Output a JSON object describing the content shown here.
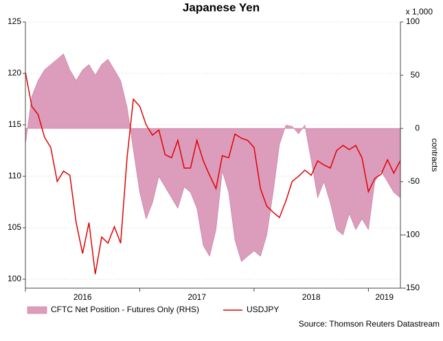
{
  "chart_data": {
    "type": "area-line",
    "title": "Japanese Yen",
    "y2_unit": "x 1,000",
    "y2label": "contracts",
    "source": "Source: Thomson Reuters Datastream",
    "x": [
      2016,
      2016.056,
      2016.111,
      2016.167,
      2016.222,
      2016.278,
      2016.333,
      2016.389,
      2016.444,
      2016.5,
      2016.556,
      2016.611,
      2016.667,
      2016.722,
      2016.778,
      2016.833,
      2016.889,
      2016.944,
      2017,
      2017.056,
      2017.111,
      2017.167,
      2017.222,
      2017.278,
      2017.333,
      2017.389,
      2017.444,
      2017.5,
      2017.556,
      2017.611,
      2017.667,
      2017.722,
      2017.778,
      2017.833,
      2017.889,
      2017.944,
      2018,
      2018.056,
      2018.111,
      2018.167,
      2018.222,
      2018.278,
      2018.333,
      2018.389,
      2018.444,
      2018.5,
      2018.556,
      2018.611,
      2018.667,
      2018.722,
      2018.778,
      2018.833,
      2018.889,
      2018.944,
      2019,
      2019.056,
      2019.111,
      2019.167,
      2019.222,
      2019.278
    ],
    "series": [
      {
        "name": "CFTC Net Position - Futures Only (RHS)",
        "kind": "area",
        "axis": "y2",
        "color": "#dc9cbc",
        "values": [
          -15,
          30,
          45,
          55,
          60,
          65,
          70,
          55,
          45,
          55,
          60,
          50,
          60,
          65,
          55,
          45,
          20,
          -20,
          -60,
          -85,
          -70,
          -45,
          -55,
          -65,
          -75,
          -55,
          -60,
          -75,
          -110,
          -120,
          -95,
          -40,
          -60,
          -105,
          -125,
          -120,
          -115,
          -120,
          -100,
          -60,
          -15,
          3,
          2,
          -5,
          3,
          -30,
          -65,
          -50,
          -70,
          -95,
          -100,
          -80,
          -95,
          -85,
          -95,
          -50,
          -40,
          -50,
          -60,
          -65
        ]
      },
      {
        "name": "USDJPY",
        "kind": "line",
        "axis": "y",
        "color": "#e00000",
        "values": [
          120.1,
          116.8,
          116,
          113.8,
          112.8,
          109.5,
          110.5,
          110.1,
          105.5,
          102.5,
          105.5,
          100.5,
          104.1,
          103.5,
          105.1,
          103.5,
          111.8,
          117.5,
          116.8,
          115,
          114,
          114.5,
          112.1,
          111.8,
          113.5,
          110.8,
          110.8,
          113.5,
          111.5,
          110.1,
          108.8,
          112,
          111.8,
          114.1,
          113.7,
          113.5,
          112.8,
          108.8,
          107.1,
          106.5,
          106,
          107.6,
          109.5,
          110,
          110.6,
          110.1,
          111.5,
          111.1,
          110.8,
          112.5,
          113,
          112.6,
          113,
          111.8,
          108.5,
          109.8,
          110.2,
          111.6,
          110.3,
          111.5
        ]
      }
    ],
    "xlim": [
      2016,
      2019.28
    ],
    "xticks": [
      2016,
      2017,
      2018,
      2019
    ],
    "ylim": [
      99.13,
      125
    ],
    "yticks": [
      100,
      105,
      110,
      115,
      120,
      125
    ],
    "y2lim": [
      -150,
      100
    ],
    "y2ticks": [
      -150,
      -100,
      -50,
      0,
      50,
      100
    ],
    "grid": true,
    "legend": "bottom"
  }
}
